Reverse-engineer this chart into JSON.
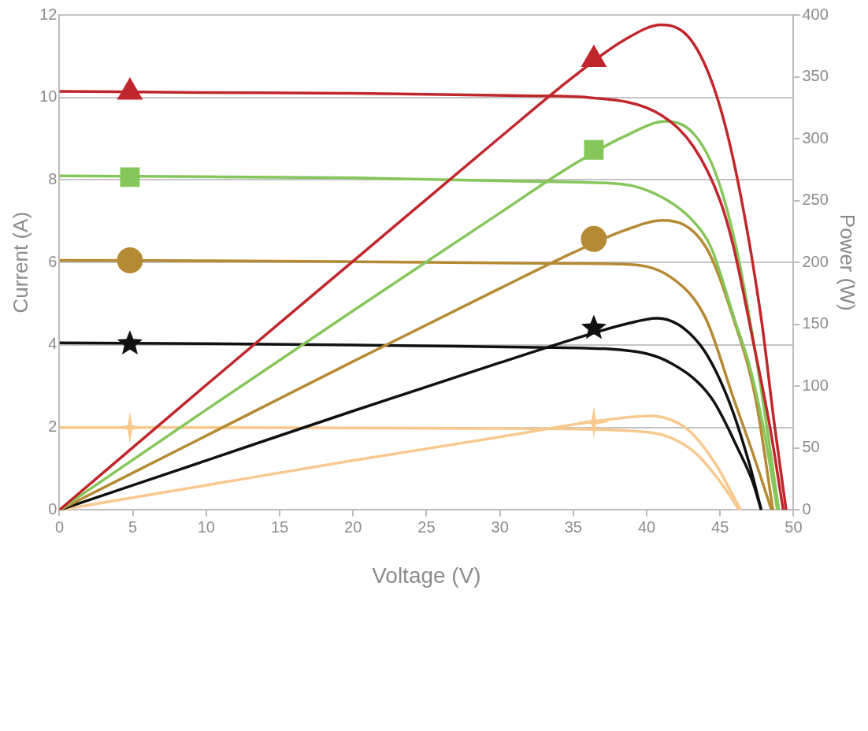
{
  "chart_data": {
    "type": "line",
    "xlabel": "Voltage (V)",
    "ylabel": "Current (A)",
    "y2label": "Power (W)",
    "xlim": [
      0,
      50
    ],
    "xticks": [
      0,
      5,
      10,
      15,
      20,
      25,
      30,
      35,
      40,
      45,
      50
    ],
    "ylim": [
      0,
      12
    ],
    "yticks": [
      0,
      2,
      4,
      6,
      8,
      10,
      12
    ],
    "y2lim": [
      0,
      400
    ],
    "y2ticks": [
      0,
      50,
      100,
      150,
      200,
      250,
      300,
      350,
      400
    ],
    "grid": "y",
    "legend": false,
    "marker": "none",
    "line_style": "solid",
    "series": [
      {
        "type": "line",
        "color": "#c0272d",
        "axis": "y",
        "x": [
          0,
          10,
          20,
          32.5,
          36,
          41,
          43.2,
          45,
          45.9,
          47.3,
          48.4,
          49.3
        ],
        "values": [
          10.15,
          10.12,
          10.1,
          10.04,
          10,
          9.57,
          8.8,
          7.5,
          6.4,
          4,
          2,
          0
        ]
      },
      {
        "type": "line",
        "color": "#c0272d",
        "axis": "y2",
        "x": [
          0,
          10,
          20,
          30,
          35,
          38.5,
          41,
          43,
          44.7,
          46.1,
          47.8,
          48.7,
          49.5
        ],
        "values": [
          0,
          101,
          201,
          301,
          350,
          380,
          392,
          380,
          337,
          272,
          155,
          69,
          0
        ]
      },
      {
        "type": "line",
        "color": "#86c65b",
        "axis": "y",
        "x": [
          0,
          10,
          20,
          32.5,
          38.3,
          41.1,
          43.2,
          44.4,
          46,
          47,
          48,
          48.9
        ],
        "values": [
          8.1,
          8.08,
          8.05,
          7.96,
          7.9,
          7.57,
          6.99,
          6.35,
          4.6,
          3.5,
          1.9,
          0
        ]
      },
      {
        "type": "line",
        "color": "#86c65b",
        "axis": "y2",
        "x": [
          0,
          10,
          20,
          30,
          35,
          38.5,
          41.3,
          43.2,
          44.7,
          46.1,
          47.5,
          49
        ],
        "values": [
          0,
          81,
          161,
          240,
          279,
          302,
          314,
          304,
          272,
          212,
          120,
          0
        ]
      },
      {
        "type": "line",
        "color": "#b58a34",
        "axis": "y",
        "x": [
          0,
          10,
          20,
          32.5,
          38.3,
          41.7,
          44,
          45.9,
          47.3,
          48.5
        ],
        "values": [
          6.05,
          6.04,
          6.02,
          5.98,
          5.96,
          5.63,
          4.66,
          2.72,
          1.3,
          0
        ]
      },
      {
        "type": "line",
        "color": "#b58a34",
        "axis": "y2",
        "x": [
          0,
          10,
          20,
          30,
          35,
          38.5,
          41.1,
          44,
          45.9,
          47.4,
          48.6
        ],
        "values": [
          0,
          60,
          120,
          179,
          208,
          226,
          234,
          213,
          155,
          91,
          0
        ]
      },
      {
        "type": "line",
        "color": "#111111",
        "axis": "y",
        "x": [
          0,
          10,
          20,
          32.5,
          38.3,
          41.7,
          44.4,
          46.3,
          47.2,
          47.8
        ],
        "values": [
          4.05,
          4.03,
          4.0,
          3.94,
          3.88,
          3.55,
          2.72,
          1.42,
          0.7,
          0
        ]
      },
      {
        "type": "line",
        "color": "#111111",
        "axis": "y2",
        "x": [
          0,
          10,
          20,
          30,
          35,
          38.5,
          40.7,
          43.6,
          45.5,
          47,
          47.8
        ],
        "values": [
          0,
          40,
          80,
          119,
          138,
          150,
          155,
          134,
          91,
          37,
          0
        ]
      },
      {
        "type": "line",
        "color": "#f7c98f",
        "axis": "y",
        "x": [
          0,
          10,
          20,
          32.5,
          40.2,
          43.2,
          45.1,
          46.3
        ],
        "values": [
          2.0,
          2.0,
          1.99,
          1.97,
          1.88,
          1.42,
          0.64,
          0
        ]
      },
      {
        "type": "line",
        "color": "#f7c98f",
        "axis": "y2",
        "x": [
          0,
          10,
          20,
          30,
          35,
          38,
          40.2,
          42.8,
          44.7,
          46.4
        ],
        "values": [
          0,
          20,
          40,
          59,
          69,
          74,
          76,
          65,
          37,
          0
        ]
      },
      {
        "type": "scatter",
        "color": "#c0272d",
        "axis": "y",
        "marker": "triangle",
        "x": [
          4.8
        ],
        "values": [
          10.13
        ]
      },
      {
        "type": "scatter",
        "color": "#c0272d",
        "axis": "y2",
        "marker": "triangle",
        "x": [
          36.4
        ],
        "values": [
          364
        ]
      },
      {
        "type": "scatter",
        "color": "#86c65b",
        "axis": "y",
        "marker": "square",
        "x": [
          4.8
        ],
        "values": [
          8.07
        ]
      },
      {
        "type": "scatter",
        "color": "#86c65b",
        "axis": "y2",
        "marker": "square",
        "x": [
          36.4
        ],
        "values": [
          291
        ]
      },
      {
        "type": "scatter",
        "color": "#b58a34",
        "axis": "y",
        "marker": "circle",
        "x": [
          4.8
        ],
        "values": [
          6.05
        ]
      },
      {
        "type": "scatter",
        "color": "#b58a34",
        "axis": "y2",
        "marker": "circle",
        "x": [
          36.4
        ],
        "values": [
          219
        ]
      },
      {
        "type": "scatter",
        "color": "#111111",
        "axis": "y",
        "marker": "star",
        "x": [
          4.8
        ],
        "values": [
          4.03
        ]
      },
      {
        "type": "scatter",
        "color": "#111111",
        "axis": "y2",
        "marker": "star",
        "x": [
          36.4
        ],
        "values": [
          147
        ]
      },
      {
        "type": "scatter",
        "color": "#f7c98f",
        "axis": "y",
        "marker": "cross",
        "x": [
          4.8
        ],
        "values": [
          2.0
        ]
      },
      {
        "type": "scatter",
        "color": "#f7c98f",
        "axis": "y2",
        "marker": "cross",
        "x": [
          36.4
        ],
        "values": [
          71
        ]
      }
    ]
  }
}
